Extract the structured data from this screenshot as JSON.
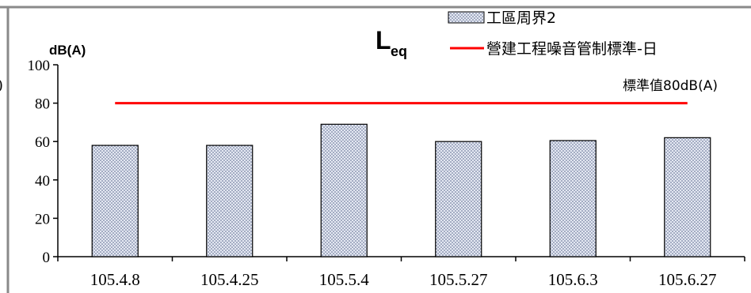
{
  "chart_data": {
    "type": "bar",
    "title_main": "L",
    "title_sub": "eq",
    "ylabel": "dB(A)",
    "ylim": [
      0,
      100
    ],
    "yticks": [
      "0",
      "20",
      "40",
      "60",
      "80",
      "100"
    ],
    "categories": [
      "105.4.8",
      "105.4.25",
      "105.5.4",
      "105.5.27",
      "105.6.3",
      "105.6.27"
    ],
    "series": [
      {
        "name": "工區周界2",
        "values": [
          58,
          58,
          69,
          60,
          60.5,
          62
        ]
      }
    ],
    "reference_line": {
      "name": "營建工程噪音管制標準-日",
      "value": 80,
      "color": "#ff0000"
    },
    "annotation": "標準值80dB(A)",
    "grid": false,
    "legend_position": "top-right",
    "colors": {
      "bar_fill": "#dfe3ee",
      "bar_dots": "#5a6a8a",
      "line": "#ff0000",
      "frame": "#808080"
    }
  }
}
